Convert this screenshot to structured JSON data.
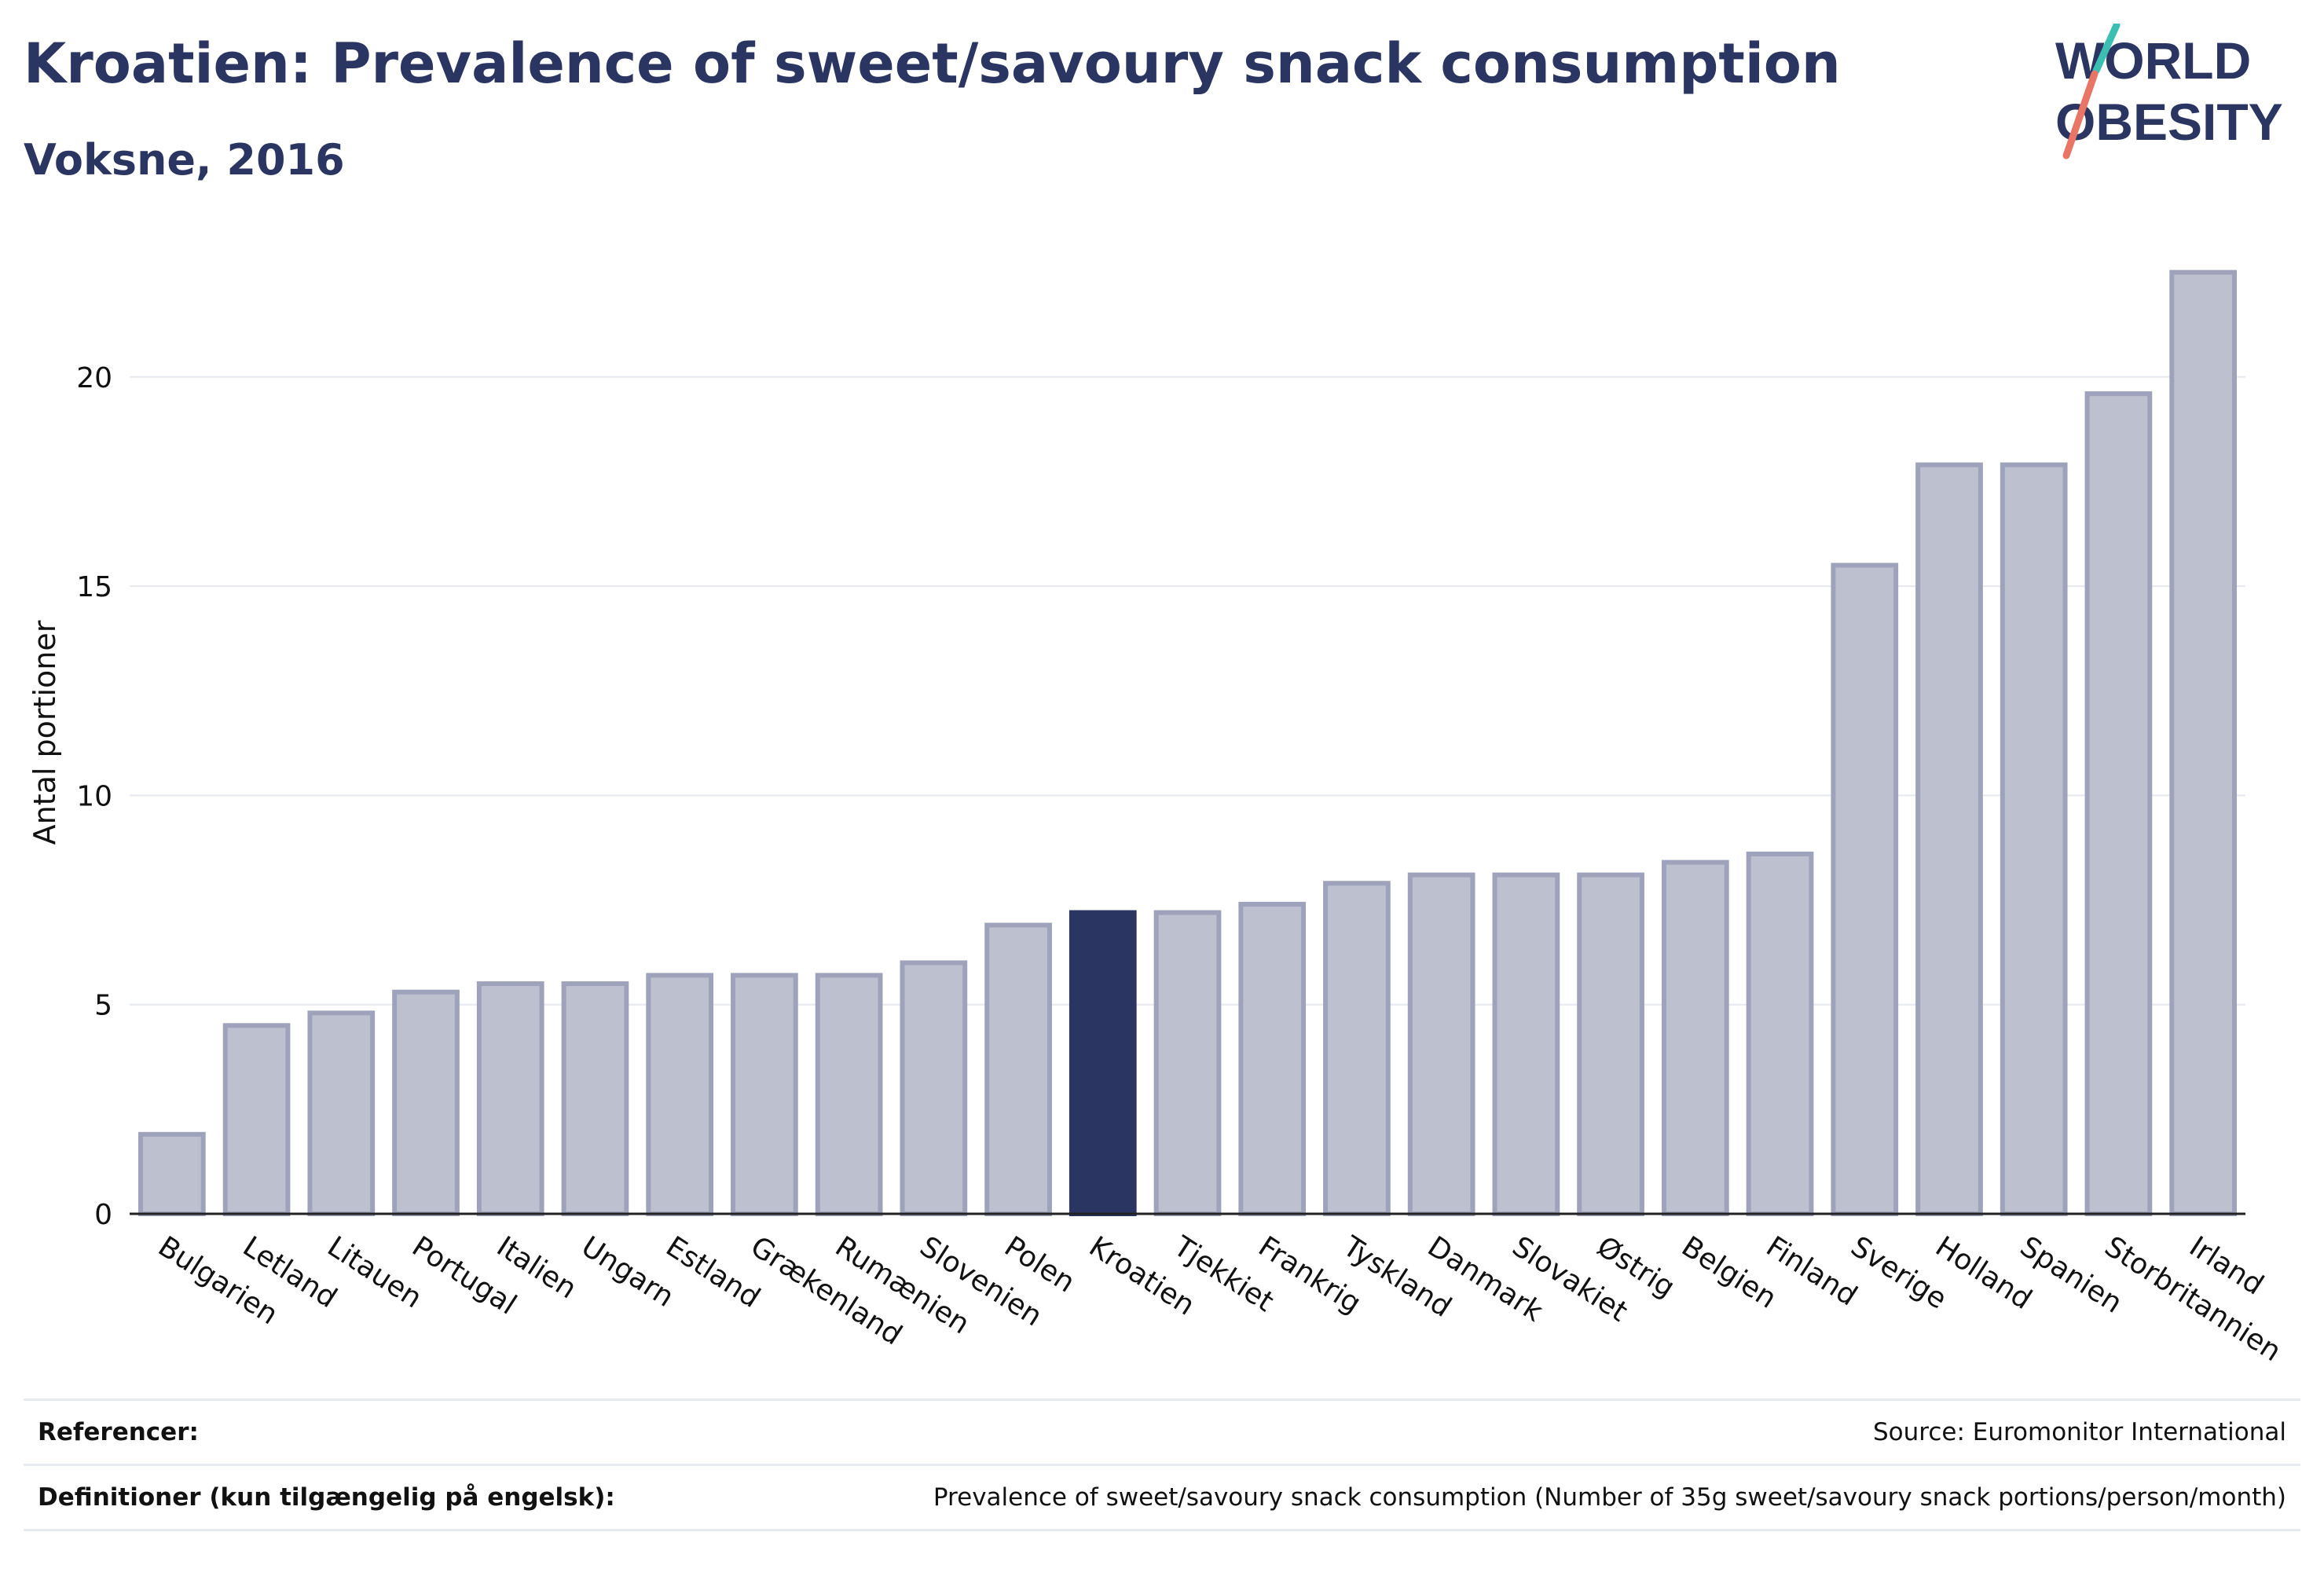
{
  "header": {
    "title": "Kroatien: Prevalence of sweet/savoury snack consumption",
    "subtitle": "Voksne, 2016"
  },
  "logo": {
    "line1": "WORLD",
    "line2": "OBESITY"
  },
  "colors": {
    "bar": "#bcc0cf",
    "bar_border": "#9ea3bb",
    "highlight": "#2b3562",
    "grid": "#e6e8ef",
    "axis": "#222222"
  },
  "chart_data": {
    "type": "bar",
    "ylabel": "Antal portioner",
    "ylim": [
      0,
      23
    ],
    "yticks": [
      0,
      5,
      10,
      15,
      20
    ],
    "categories": [
      "Bulgarien",
      "Letland",
      "Litauen",
      "Portugal",
      "Italien",
      "Ungarn",
      "Estland",
      "Grækenland",
      "Rumænien",
      "Slovenien",
      "Polen",
      "Kroatien",
      "Tjekkiet",
      "Frankrig",
      "Tyskland",
      "Danmark",
      "Slovakiet",
      "Østrig",
      "Belgien",
      "Finland",
      "Sverige",
      "Holland",
      "Spanien",
      "Storbritannien",
      "Irland"
    ],
    "values": [
      1.9,
      4.5,
      4.8,
      5.3,
      5.5,
      5.5,
      5.7,
      5.7,
      5.7,
      6.0,
      6.9,
      7.2,
      7.2,
      7.4,
      7.9,
      8.1,
      8.1,
      8.1,
      8.4,
      8.6,
      15.5,
      17.9,
      17.9,
      19.6,
      22.5
    ],
    "highlight": "Kroatien",
    "grid": true
  },
  "footer": {
    "references_label": "Referencer:",
    "references_value": "Source: Euromonitor International",
    "definitions_label": "Definitioner (kun tilgængelig på engelsk):",
    "definitions_value": "Prevalence of sweet/savoury snack consumption (Number of 35g sweet/savoury snack portions/person/month)"
  }
}
